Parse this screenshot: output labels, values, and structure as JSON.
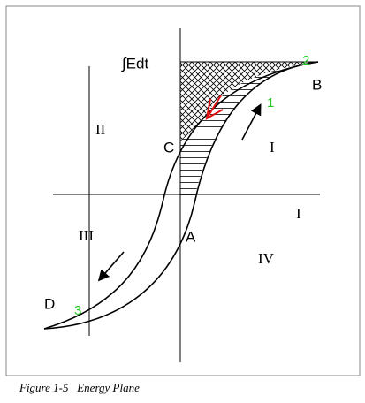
{
  "integral_label": "∫Edt",
  "points": {
    "A": "A",
    "B": "B",
    "C": "C",
    "D": "D"
  },
  "regions": [
    "II",
    "I",
    "I",
    "III",
    "IV"
  ],
  "markers": [
    "1",
    "2",
    "3"
  ],
  "caption": "Figure 1-5   Energy Plane"
}
